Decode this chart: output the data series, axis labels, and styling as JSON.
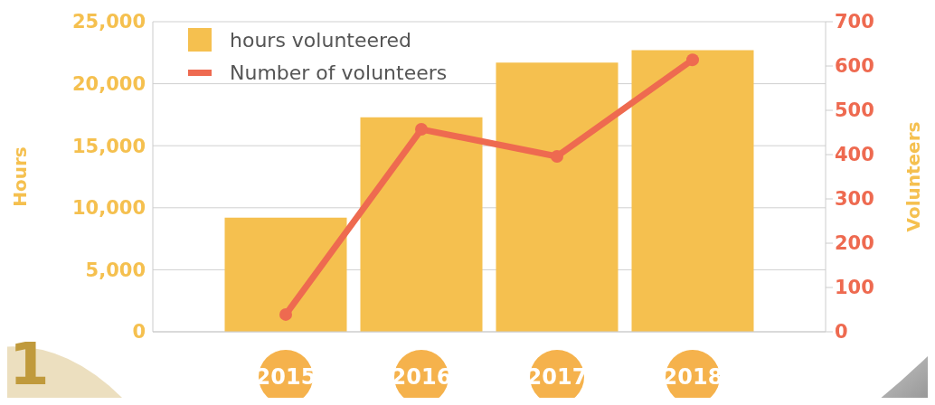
{
  "chart_data": {
    "type": "bar",
    "categories": [
      "2015",
      "2016",
      "2017",
      "2018"
    ],
    "series": [
      {
        "name": "hours volunteered",
        "color": "#f5c04f",
        "values": [
          9200,
          17300,
          21700,
          22700
        ]
      },
      {
        "name": "Number of volunteers",
        "type": "line",
        "axis": "y2",
        "color": "#ee6a50",
        "values": [
          39,
          457,
          396,
          614
        ]
      }
    ],
    "ylabel": "Hours",
    "y2label": "Volunteers",
    "ylim": [
      0,
      25000
    ],
    "yticks": [
      0,
      {
        "value": 5000,
        "label": "5,000"
      },
      {
        "value": 10000,
        "label": "10,000"
      },
      {
        "value": 15000,
        "label": "15,000"
      },
      {
        "value": 20000,
        "label": "20,000"
      },
      {
        "value": 25000,
        "label": "25,000"
      }
    ],
    "y2lim": [
      0,
      700
    ],
    "y2ticks": [
      0,
      100,
      200,
      300,
      400,
      500,
      600,
      700
    ],
    "grid": "y",
    "legend": "top left",
    "marker": "circle",
    "annotations": [
      "1"
    ]
  }
}
